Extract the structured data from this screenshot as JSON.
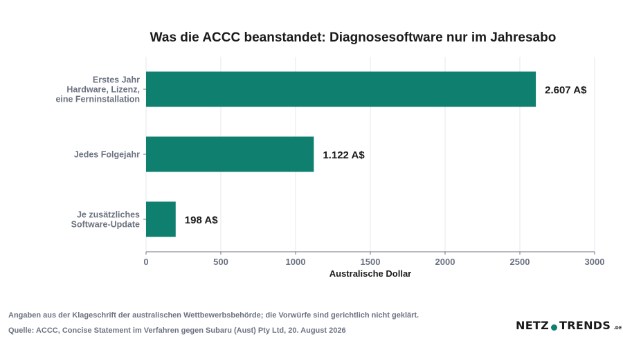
{
  "title": "Was die ACCC beanstandet: Diagnosesoftware nur im Jahresabo",
  "chart_data": {
    "type": "bar",
    "orientation": "horizontal",
    "categories": [
      [
        "Erstes Jahr",
        "Hardware, Lizenz,",
        "eine Ferninstallation"
      ],
      [
        "Jedes Folgejahr"
      ],
      [
        "Je zusätzliches",
        "Software-Update"
      ]
    ],
    "values": [
      2607,
      1122,
      198
    ],
    "value_labels": [
      "2.607 A$",
      "1.122 A$",
      "198 A$"
    ],
    "xlabel": "Australische Dollar",
    "ylabel": "",
    "xlim": [
      0,
      3000
    ],
    "xticks": [
      0,
      500,
      1000,
      1500,
      2000,
      2500,
      3000
    ],
    "grid": "vertical",
    "bar_color": "#0f7f6f"
  },
  "footnote": "Angaben aus der Klageschrift der australischen Wettbewerbsbehörde; die Vorwürfe sind gerichtlich nicht geklärt.",
  "source": "Quelle: ACCC, Concise Statement im Verfahren gegen Subaru (Aust) Pty Ltd, 20. August 2026",
  "logo": {
    "left": "NETZ",
    "right": "TRENDS",
    "tld": ".DE"
  }
}
